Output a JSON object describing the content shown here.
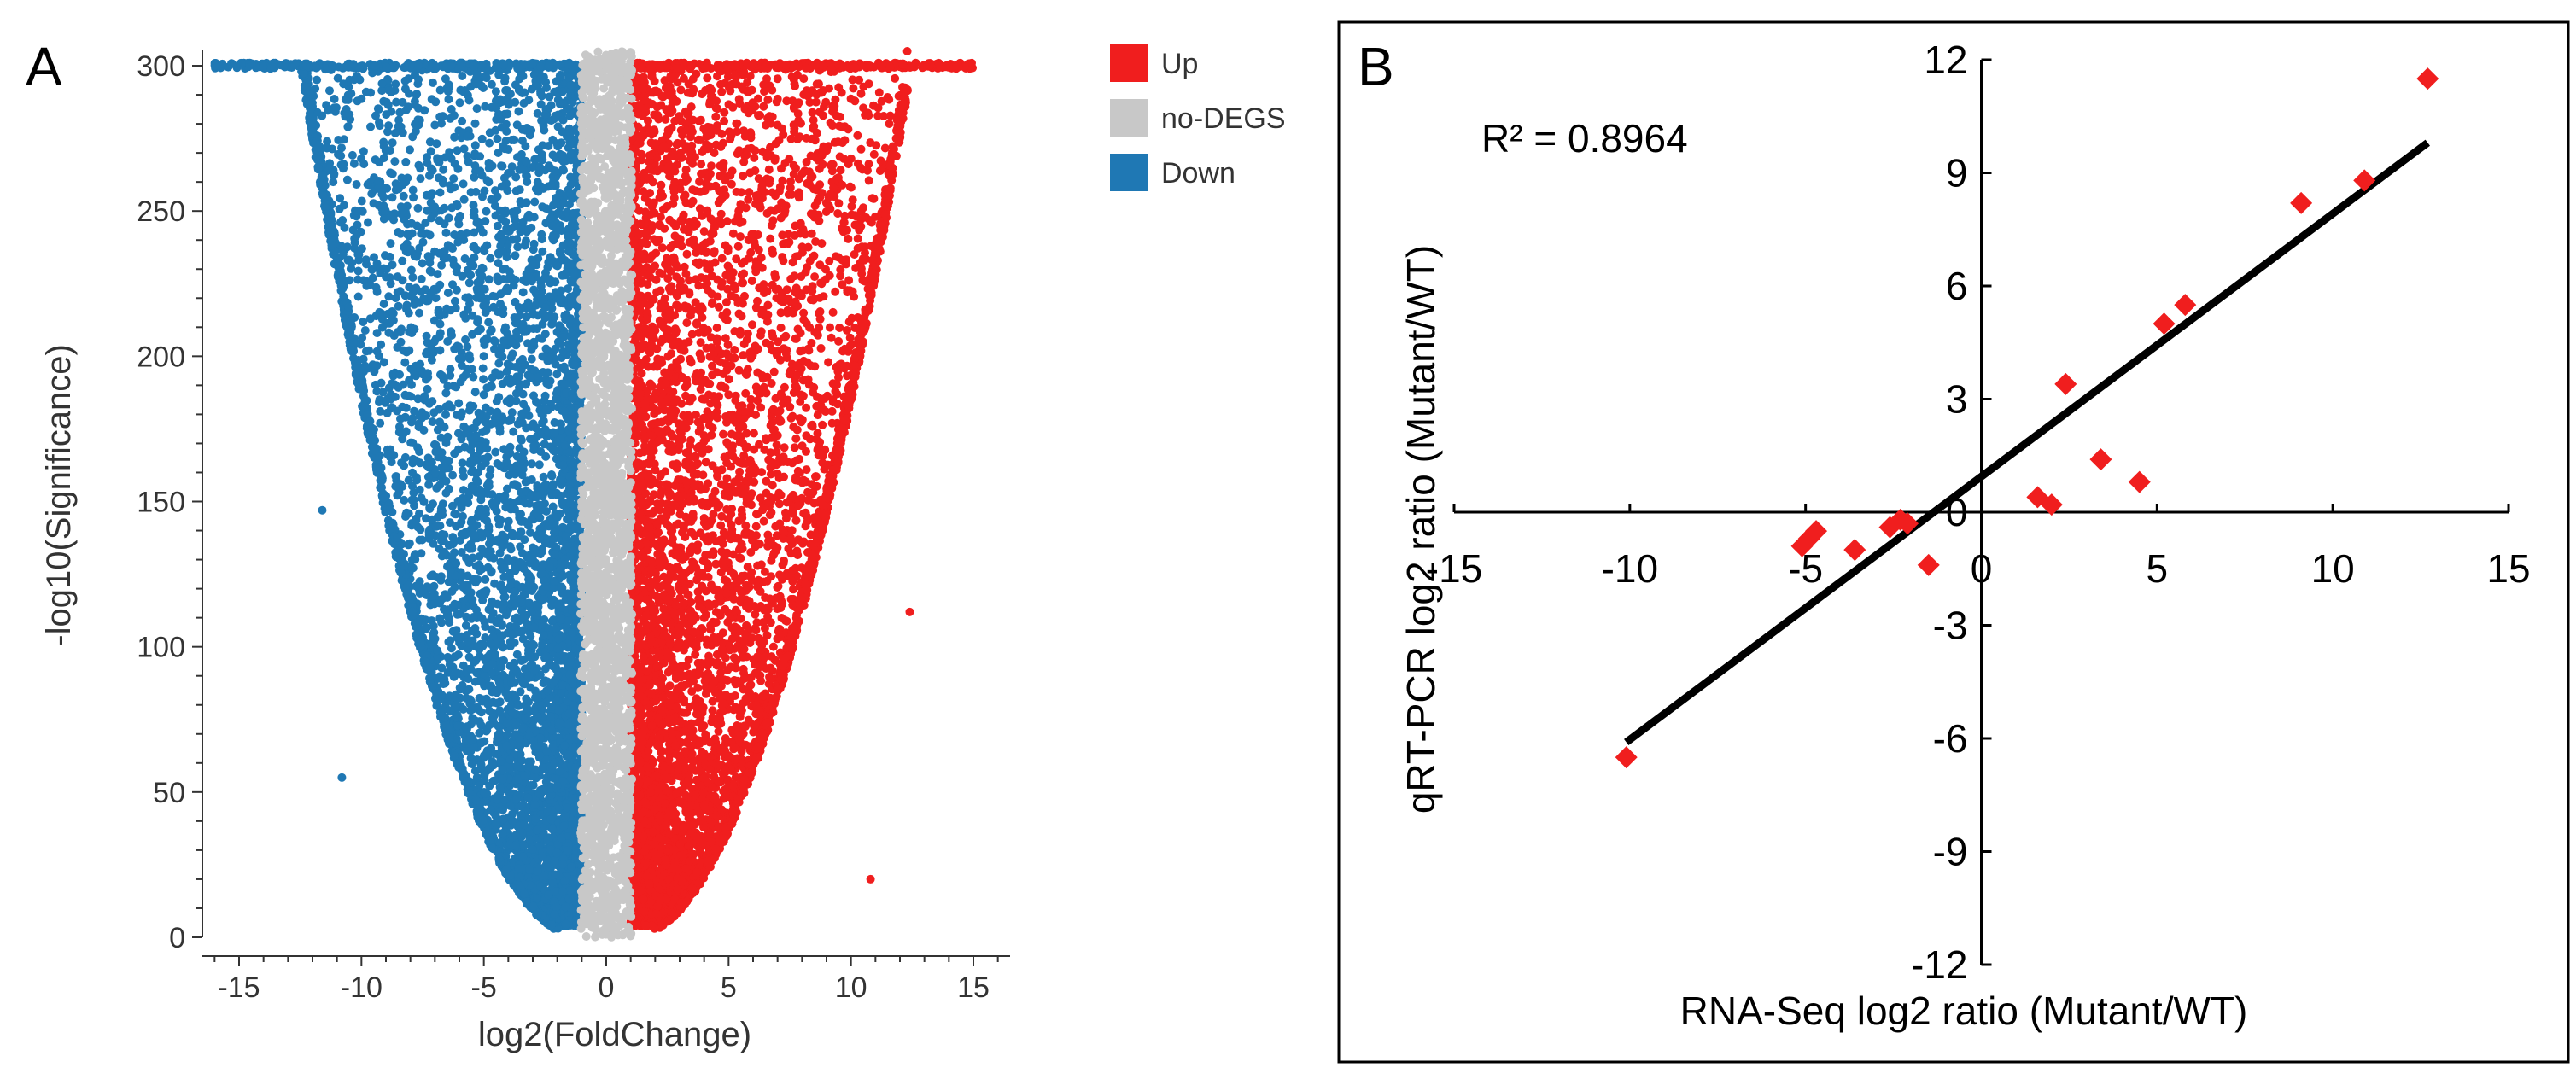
{
  "chart_data": [
    {
      "type": "scatter",
      "panel_label": "A",
      "title": "",
      "xlabel": "log2(FoldChange)",
      "ylabel": "-log10(Significance)",
      "xlim": [
        -16.5,
        16.5
      ],
      "ylim": [
        0,
        305
      ],
      "xticks": [
        -15,
        -10,
        -5,
        0,
        5,
        10,
        15
      ],
      "yticks": [
        0,
        50,
        100,
        150,
        200,
        250,
        300
      ],
      "legend": {
        "placement": "outside-right",
        "entries": [
          {
            "label": "Up",
            "color": "#f01e1e"
          },
          {
            "label": "no-DEGS",
            "color": "#c8c8c8"
          },
          {
            "label": "Down",
            "color": "#1f78b4"
          }
        ]
      },
      "series": [
        {
          "name": "Up",
          "color": "#f01e1e",
          "description": "dense points for log2FC > 1, bounded by envelope curve reaching x≈12.3 at y≈290, many saturated at y=300 out to x≈15"
        },
        {
          "name": "no-DEGS",
          "color": "#c8c8c8",
          "description": "dense points for -1 < log2FC < 1 across y 0–305"
        },
        {
          "name": "Down",
          "color": "#1f78b4",
          "description": "dense points for log2FC < -1, bounded by envelope curve reaching x≈-12.5 at y≈300, many saturated at y=300 out to x≈-16"
        }
      ],
      "outliers": [
        {
          "series": "Up",
          "x": 12.4,
          "y": 112
        },
        {
          "series": "Up",
          "x": 10.8,
          "y": 20
        },
        {
          "series": "Down",
          "x": -10.8,
          "y": 55
        },
        {
          "series": "Down",
          "x": -11.6,
          "y": 147
        },
        {
          "series": "Up",
          "x": 12.3,
          "y": 305
        }
      ]
    },
    {
      "type": "scatter",
      "panel_label": "B",
      "title": "",
      "xlabel": "RNA-Seq log2 ratio (Mutant/WT)",
      "ylabel": "qRT-PCR log2 ratio (Mutant/WT)",
      "xlim": [
        -15,
        15
      ],
      "ylim": [
        -12,
        12
      ],
      "xticks": [
        -15,
        -10,
        -5,
        0,
        5,
        10,
        15
      ],
      "yticks": [
        -12,
        -9,
        -6,
        -3,
        0,
        3,
        6,
        9,
        12
      ],
      "grid": false,
      "annotation": "R² = 0.8964",
      "marker_color": "#f01e1e",
      "points": [
        {
          "x": -10.1,
          "y": -6.5
        },
        {
          "x": -5.1,
          "y": -0.9
        },
        {
          "x": -4.9,
          "y": -0.7
        },
        {
          "x": -4.7,
          "y": -0.5
        },
        {
          "x": -3.6,
          "y": -1.0
        },
        {
          "x": -2.6,
          "y": -0.4
        },
        {
          "x": -2.3,
          "y": -0.2
        },
        {
          "x": -2.1,
          "y": -0.3
        },
        {
          "x": -1.5,
          "y": -1.4
        },
        {
          "x": 1.6,
          "y": 0.4
        },
        {
          "x": 2.0,
          "y": 0.2
        },
        {
          "x": 2.4,
          "y": 3.4
        },
        {
          "x": 3.4,
          "y": 1.4
        },
        {
          "x": 4.5,
          "y": 0.8
        },
        {
          "x": 5.2,
          "y": 5.0
        },
        {
          "x": 5.8,
          "y": 5.5
        },
        {
          "x": 9.1,
          "y": 8.2
        },
        {
          "x": 10.9,
          "y": 8.8
        },
        {
          "x": 12.7,
          "y": 11.5
        }
      ],
      "trendline": {
        "x": [
          -10.1,
          12.7
        ],
        "y": [
          -6.1,
          9.8
        ],
        "color": "#000000"
      }
    }
  ]
}
